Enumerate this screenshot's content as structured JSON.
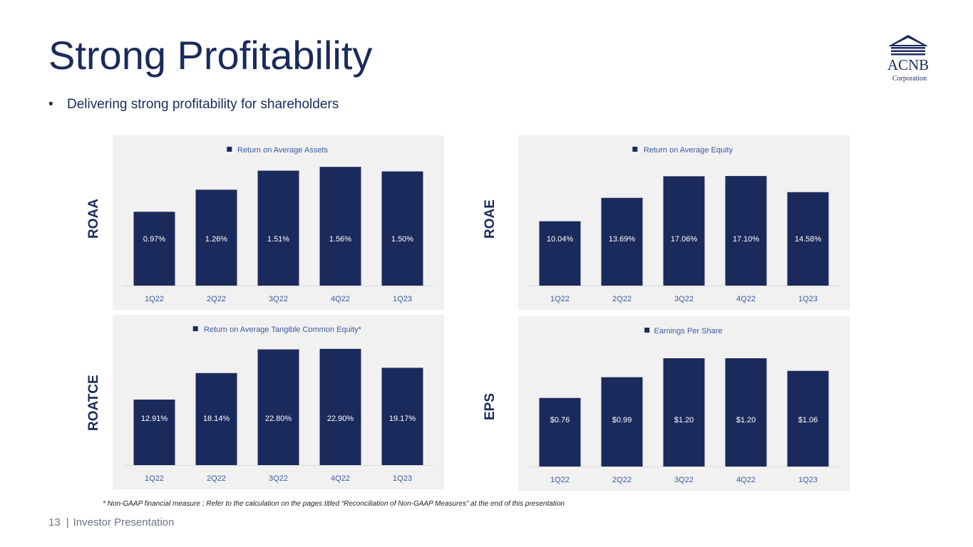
{
  "slide": {
    "title": "Strong Profitability",
    "bullet": "Delivering strong profitability for shareholders",
    "footnote": "* Non-GAAP financial measure ; Refer to the calculation on the pages titled “Reconciliation of Non-GAAP Measures” at the end of this presentation",
    "page_number": "13",
    "footer_label": "Investor Presentation",
    "logo": {
      "name": "ACNB",
      "sub": "Corporation"
    }
  },
  "colors": {
    "bar": "#1b2a5c",
    "axis_text": "#3b5aa0",
    "panel_bg": "#f1f1f1",
    "label_light": "#ffffff",
    "baseline": "#d9d9d9"
  },
  "chart_data": [
    {
      "id": "roaa",
      "type": "bar",
      "ylabel": "ROAA",
      "legend": "Return on Average Assets",
      "categories": [
        "1Q22",
        "2Q22",
        "3Q22",
        "4Q22",
        "1Q23"
      ],
      "values": [
        0.97,
        1.26,
        1.51,
        1.56,
        1.5
      ],
      "labels": [
        "0.97%",
        "1.26%",
        "1.51%",
        "1.56%",
        "1.50%"
      ],
      "ylim": [
        0,
        1.6
      ]
    },
    {
      "id": "roae",
      "type": "bar",
      "ylabel": "ROAE",
      "legend": "Return on Average Equity",
      "categories": [
        "1Q22",
        "2Q22",
        "3Q22",
        "4Q22",
        "1Q23"
      ],
      "values": [
        10.04,
        13.69,
        17.06,
        17.1,
        14.58
      ],
      "labels": [
        "10.04%",
        "13.69%",
        "17.06%",
        "17.10%",
        "14.58%"
      ],
      "ylim": [
        0,
        19
      ]
    },
    {
      "id": "roatce",
      "type": "bar",
      "ylabel": "ROATCE",
      "legend": "Return on Average Tangible Common Equity*",
      "categories": [
        "1Q22",
        "2Q22",
        "3Q22",
        "4Q22",
        "1Q23"
      ],
      "values": [
        12.91,
        18.14,
        22.8,
        22.9,
        19.17
      ],
      "labels": [
        "12.91%",
        "18.14%",
        "22.80%",
        "22.90%",
        "19.17%"
      ],
      "ylim": [
        0,
        24
      ]
    },
    {
      "id": "eps",
      "type": "bar",
      "ylabel": "EPS",
      "legend": "Earnings Per Share",
      "categories": [
        "1Q22",
        "2Q22",
        "3Q22",
        "4Q22",
        "1Q23"
      ],
      "values": [
        0.76,
        0.99,
        1.2,
        1.2,
        1.06
      ],
      "labels": [
        "$0.76",
        "$0.99",
        "$1.20",
        "$1.20",
        "$1.06"
      ],
      "ylim": [
        0,
        1.35
      ]
    }
  ]
}
